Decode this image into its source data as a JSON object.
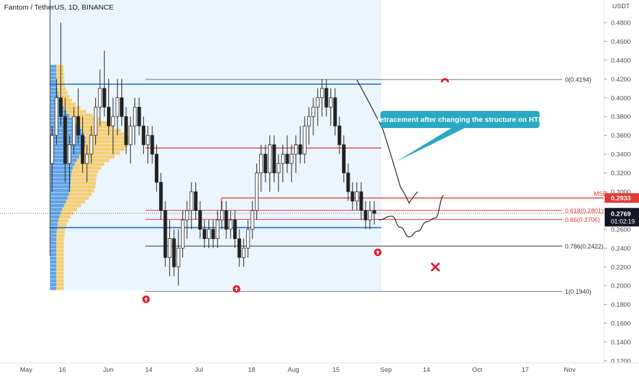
{
  "header": {
    "symbol_title": "Fantom / TetherUS, 1D, BINANCE"
  },
  "annotations": {
    "callout": "retracement after changing the structure on HTF",
    "msb": "MSB"
  },
  "colors": {
    "bull": "#26a69a",
    "bear": "#222222",
    "fib": "#e53935",
    "blue_line": "#1565c0",
    "zone": "#e3f2fd",
    "callout_bg": "#2aa9c2",
    "signal": "#e11d2a",
    "vp_up": "#3d8fe0",
    "vp_down": "#f7c24a"
  },
  "chart_data": {
    "type": "candlestick",
    "title": "Fantom / TetherUS, 1D, BINANCE",
    "y_axis_unit": "USDT",
    "ylim": [
      0.115,
      0.495
    ],
    "y_ticks": [
      "0.4800",
      "0.4600",
      "0.4400",
      "0.4200",
      "0.4000",
      "0.3800",
      "0.3600",
      "0.3400",
      "0.3200",
      "0.3000",
      "0.2800",
      "0.2600",
      "0.2400",
      "0.2200",
      "0.2000",
      "0.1800",
      "0.1600",
      "0.1400",
      "0.1200"
    ],
    "x_ticks": [
      "May",
      "16",
      "Jun",
      "14",
      "Jul",
      "18",
      "Aug",
      "15",
      "Sep",
      "14",
      "Oct",
      "17",
      "Nov"
    ],
    "last_price": "0.2769",
    "countdown": "01:02:19",
    "msb_price": "0.2933",
    "fib_labels": [
      {
        "text": "0(0.4194)",
        "value": 0.4194
      },
      {
        "text": "0.618(0.2801)",
        "value": 0.2801
      },
      {
        "text": "0.66(0.2706)",
        "value": 0.2706
      },
      {
        "text": "0.786(0.2422)",
        "value": 0.2422
      },
      {
        "text": "1(0.1940)",
        "value": 0.194
      }
    ],
    "levels": {
      "blue_upper": 0.4145,
      "blue_lower": 0.2618,
      "red_upper": 0.3465,
      "msb": 0.2933
    },
    "candles": [
      [
        0.33,
        0.37,
        0.3,
        0.36
      ],
      [
        0.36,
        0.42,
        0.35,
        0.4
      ],
      [
        0.4,
        0.48,
        0.37,
        0.38
      ],
      [
        0.38,
        0.4,
        0.31,
        0.33
      ],
      [
        0.33,
        0.36,
        0.3,
        0.35
      ],
      [
        0.35,
        0.39,
        0.34,
        0.38
      ],
      [
        0.38,
        0.41,
        0.35,
        0.36
      ],
      [
        0.36,
        0.38,
        0.32,
        0.33
      ],
      [
        0.33,
        0.35,
        0.31,
        0.34
      ],
      [
        0.34,
        0.37,
        0.33,
        0.36
      ],
      [
        0.36,
        0.4,
        0.35,
        0.39
      ],
      [
        0.39,
        0.43,
        0.37,
        0.41
      ],
      [
        0.41,
        0.45,
        0.38,
        0.39
      ],
      [
        0.39,
        0.42,
        0.36,
        0.37
      ],
      [
        0.37,
        0.4,
        0.34,
        0.38
      ],
      [
        0.38,
        0.42,
        0.36,
        0.4
      ],
      [
        0.4,
        0.42,
        0.37,
        0.38
      ],
      [
        0.38,
        0.39,
        0.34,
        0.35
      ],
      [
        0.35,
        0.38,
        0.33,
        0.37
      ],
      [
        0.37,
        0.4,
        0.35,
        0.39
      ],
      [
        0.39,
        0.4,
        0.36,
        0.37
      ],
      [
        0.37,
        0.38,
        0.34,
        0.35
      ],
      [
        0.35,
        0.37,
        0.33,
        0.36
      ],
      [
        0.36,
        0.37,
        0.33,
        0.34
      ],
      [
        0.34,
        0.35,
        0.3,
        0.31
      ],
      [
        0.31,
        0.32,
        0.27,
        0.28
      ],
      [
        0.28,
        0.29,
        0.22,
        0.23
      ],
      [
        0.23,
        0.27,
        0.21,
        0.25
      ],
      [
        0.25,
        0.26,
        0.21,
        0.22
      ],
      [
        0.22,
        0.26,
        0.2,
        0.24
      ],
      [
        0.24,
        0.28,
        0.23,
        0.27
      ],
      [
        0.27,
        0.29,
        0.25,
        0.28
      ],
      [
        0.28,
        0.31,
        0.26,
        0.3
      ],
      [
        0.3,
        0.31,
        0.27,
        0.28
      ],
      [
        0.28,
        0.29,
        0.25,
        0.26
      ],
      [
        0.26,
        0.27,
        0.24,
        0.25
      ],
      [
        0.25,
        0.27,
        0.24,
        0.26
      ],
      [
        0.26,
        0.27,
        0.24,
        0.25
      ],
      [
        0.25,
        0.28,
        0.24,
        0.27
      ],
      [
        0.27,
        0.29,
        0.26,
        0.28
      ],
      [
        0.28,
        0.29,
        0.25,
        0.26
      ],
      [
        0.26,
        0.28,
        0.25,
        0.27
      ],
      [
        0.27,
        0.28,
        0.24,
        0.25
      ],
      [
        0.25,
        0.26,
        0.22,
        0.23
      ],
      [
        0.23,
        0.25,
        0.22,
        0.24
      ],
      [
        0.24,
        0.27,
        0.23,
        0.26
      ],
      [
        0.26,
        0.29,
        0.25,
        0.28
      ],
      [
        0.28,
        0.33,
        0.27,
        0.32
      ],
      [
        0.32,
        0.35,
        0.3,
        0.34
      ],
      [
        0.34,
        0.35,
        0.31,
        0.32
      ],
      [
        0.32,
        0.36,
        0.3,
        0.35
      ],
      [
        0.35,
        0.36,
        0.31,
        0.32
      ],
      [
        0.32,
        0.34,
        0.3,
        0.33
      ],
      [
        0.33,
        0.35,
        0.31,
        0.34
      ],
      [
        0.34,
        0.36,
        0.32,
        0.33
      ],
      [
        0.33,
        0.35,
        0.31,
        0.34
      ],
      [
        0.34,
        0.36,
        0.32,
        0.35
      ],
      [
        0.35,
        0.37,
        0.33,
        0.34
      ],
      [
        0.34,
        0.38,
        0.33,
        0.37
      ],
      [
        0.37,
        0.39,
        0.35,
        0.38
      ],
      [
        0.38,
        0.4,
        0.36,
        0.39
      ],
      [
        0.39,
        0.41,
        0.37,
        0.4
      ],
      [
        0.4,
        0.42,
        0.38,
        0.41
      ],
      [
        0.41,
        0.42,
        0.38,
        0.39
      ],
      [
        0.39,
        0.41,
        0.37,
        0.4
      ],
      [
        0.4,
        0.41,
        0.36,
        0.37
      ],
      [
        0.37,
        0.38,
        0.34,
        0.35
      ],
      [
        0.35,
        0.36,
        0.31,
        0.32
      ],
      [
        0.32,
        0.33,
        0.29,
        0.3
      ],
      [
        0.3,
        0.31,
        0.28,
        0.29
      ],
      [
        0.29,
        0.31,
        0.28,
        0.3
      ],
      [
        0.3,
        0.31,
        0.27,
        0.28
      ],
      [
        0.28,
        0.29,
        0.26,
        0.27
      ],
      [
        0.27,
        0.29,
        0.26,
        0.28
      ],
      [
        0.28,
        0.29,
        0.265,
        0.2769
      ]
    ],
    "projection": [
      {
        "bar": 75,
        "value": 0.27
      },
      {
        "bar": 78,
        "value": 0.274
      },
      {
        "bar": 80,
        "value": 0.262
      },
      {
        "bar": 82,
        "value": 0.252
      },
      {
        "bar": 84,
        "value": 0.258
      },
      {
        "bar": 86,
        "value": 0.268
      },
      {
        "bar": 88,
        "value": 0.272
      },
      {
        "bar": 90,
        "value": 0.296
      }
    ],
    "arrow_line": [
      {
        "bar": 70,
        "value": 0.419
      },
      {
        "bar": 76,
        "value": 0.366
      },
      {
        "bar": 80,
        "value": 0.305
      },
      {
        "bar": 82,
        "value": 0.288
      },
      {
        "bar": 84,
        "value": 0.3
      }
    ]
  }
}
